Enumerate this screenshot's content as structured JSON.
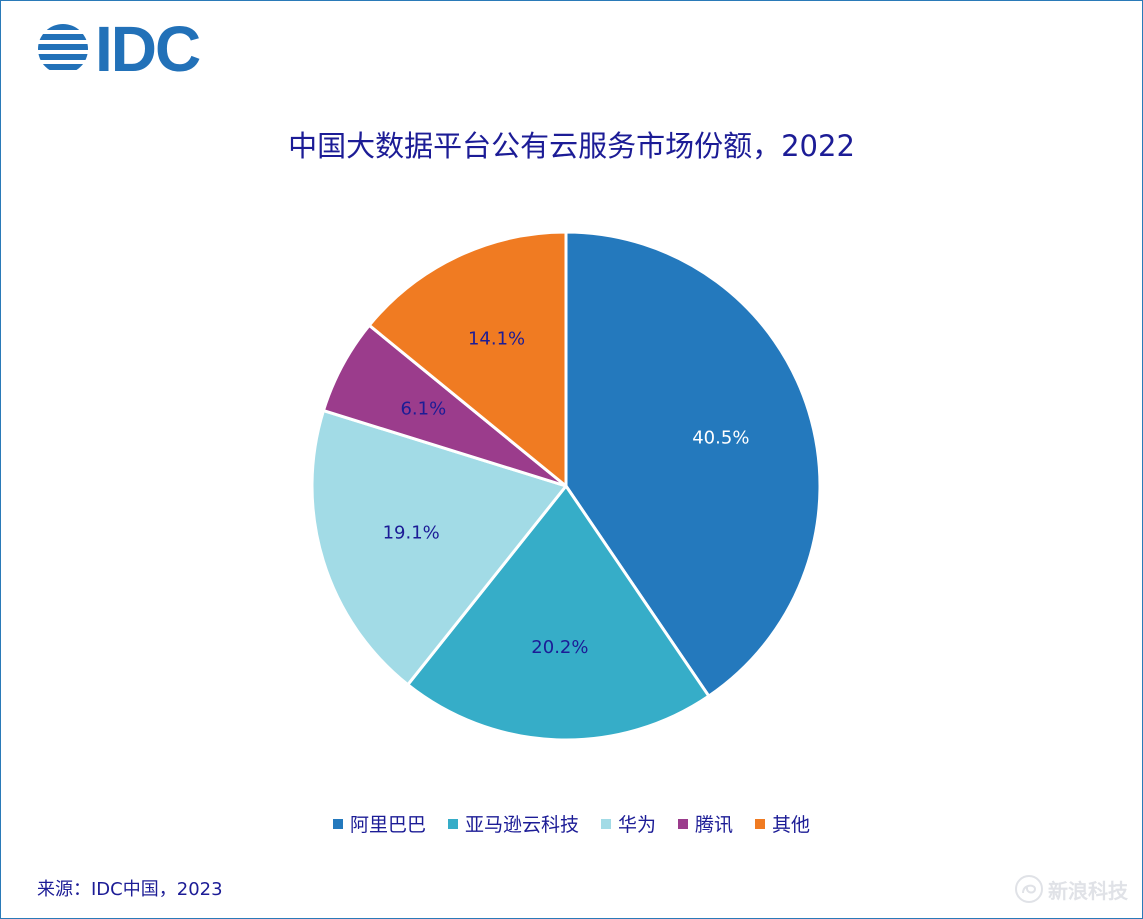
{
  "brand": {
    "logo_text": "IDC",
    "logo_color": "#2271b8"
  },
  "title": "中国大数据平台公有云服务市场份额，2022",
  "source": "来源：IDC中国，2023",
  "watermark": "新浪科技",
  "colors": {
    "text": "#1c1c96",
    "border": "#2a7ab8"
  },
  "chart_data": {
    "type": "pie",
    "title": "中国大数据平台公有云服务市场份额，2022",
    "start_angle_deg": 0,
    "direction": "clockwise",
    "legend_position": "bottom",
    "slices": [
      {
        "name": "阿里巴巴",
        "value": 40.5,
        "label": "40.5%",
        "color": "#2479bd",
        "label_color": "#ffffff"
      },
      {
        "name": "亚马逊云科技",
        "value": 20.2,
        "label": "20.2%",
        "color": "#36adc8",
        "label_color": "#1c1c96"
      },
      {
        "name": "华为",
        "value": 19.1,
        "label": "19.1%",
        "color": "#a2dbe6",
        "label_color": "#1c1c96"
      },
      {
        "name": "腾讯",
        "value": 6.1,
        "label": "6.1%",
        "color": "#9b3c8c",
        "label_color": "#1c1c96"
      },
      {
        "name": "其他",
        "value": 14.1,
        "label": "14.1%",
        "color": "#f07b22",
        "label_color": "#1c1c96"
      }
    ]
  }
}
